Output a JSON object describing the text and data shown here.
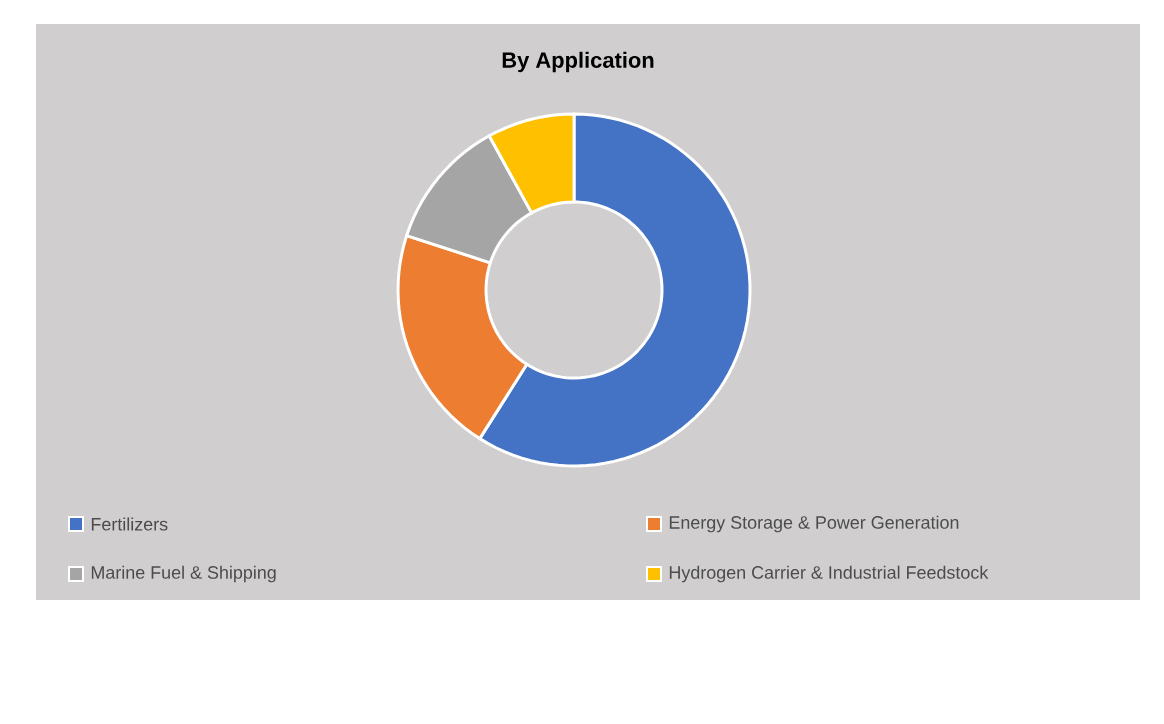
{
  "chart_data": {
    "type": "donut",
    "title": "By Application",
    "categories": [
      "Fertilizers",
      "Energy Storage & Power Generation",
      "Marine Fuel & Shipping",
      "Hydrogen Carrier & Industrial Feedstock"
    ],
    "values": [
      59,
      21,
      12,
      8
    ],
    "colors": [
      "#4472c4",
      "#ed7d31",
      "#a5a5a5",
      "#ffc000"
    ],
    "legend": "bottom"
  }
}
